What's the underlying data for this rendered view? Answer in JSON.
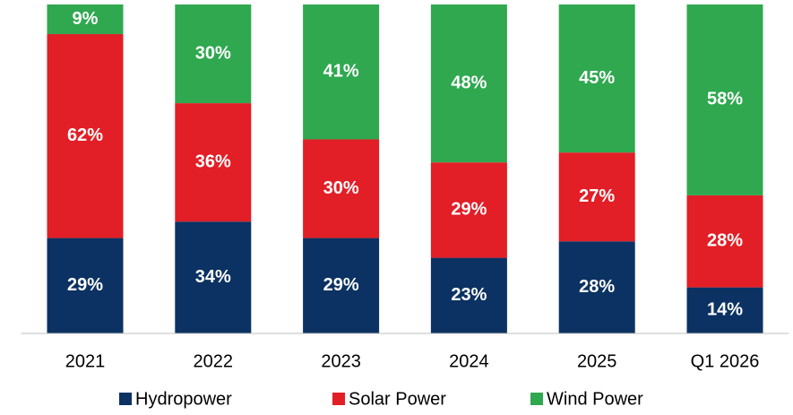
{
  "chart_data": {
    "type": "stacked_bar",
    "categories": [
      "2021",
      "2022",
      "2023",
      "2024",
      "2025",
      "Q1 2026"
    ],
    "series": [
      {
        "name": "Hydropower",
        "color": "#0b3262",
        "values": [
          29,
          34,
          29,
          23,
          28,
          14
        ],
        "value_labels": [
          "29%",
          "34%",
          "29%",
          "23%",
          "28%",
          "14%"
        ]
      },
      {
        "name": "Solar Power",
        "color": "#e21e26",
        "values": [
          62,
          36,
          30,
          29,
          27,
          28
        ],
        "value_labels": [
          "62%",
          "36%",
          "30%",
          "29%",
          "27%",
          "28%"
        ]
      },
      {
        "name": "Wind Power",
        "color": "#2fa84f",
        "values": [
          9,
          30,
          41,
          48,
          45,
          58
        ],
        "value_labels": [
          "9%",
          "30%",
          "41%",
          "48%",
          "45%",
          "58%"
        ]
      }
    ]
  }
}
